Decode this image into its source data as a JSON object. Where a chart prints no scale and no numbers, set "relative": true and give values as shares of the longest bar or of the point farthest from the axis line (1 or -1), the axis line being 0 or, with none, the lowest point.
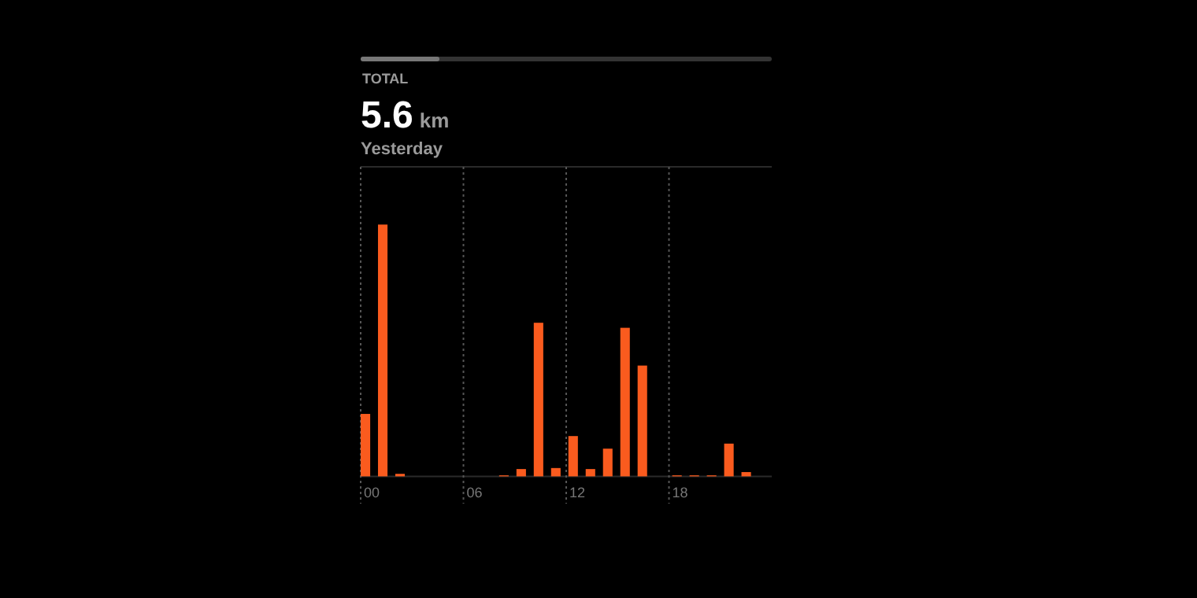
{
  "chart_data": {
    "type": "bar",
    "title": "5.6 km",
    "subtitle": "Yesterday",
    "annotations": [
      "TOTAL"
    ],
    "categories": [
      "00",
      null,
      null,
      null,
      null,
      null,
      "06",
      null,
      null,
      null,
      null,
      null,
      "12",
      null,
      null,
      null,
      null,
      null,
      "18",
      null,
      null,
      null,
      null,
      null
    ],
    "values": [
      0.248,
      1,
      0.01,
      0,
      0,
      0,
      0,
      0,
      0.004,
      0.029,
      0.61,
      0.033,
      0.16,
      0.029,
      0.11,
      0.59,
      0.44,
      0,
      0.004,
      0.004,
      0.004,
      0.13,
      0.017,
      0
    ],
    "color": "#fa5b1e",
    "relative": true,
    "grid": "x"
  }
}
